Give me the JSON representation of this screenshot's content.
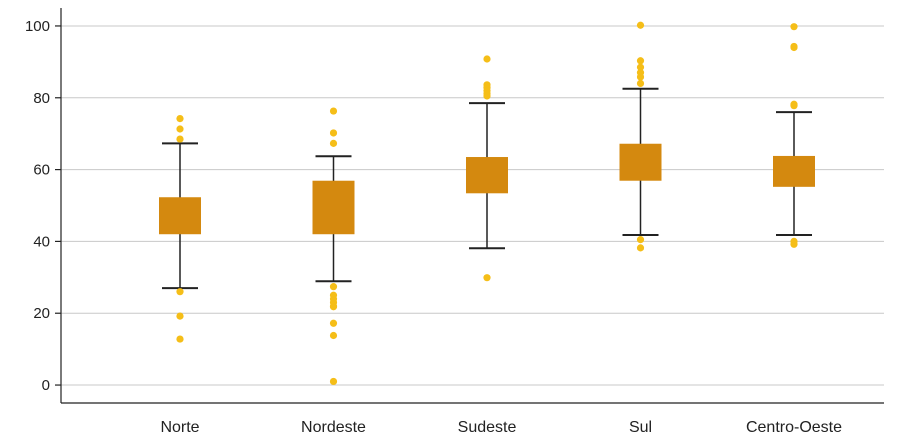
{
  "chart_data": {
    "type": "box",
    "title": "",
    "xlabel": "",
    "ylabel": "",
    "ylim": [
      -5,
      105
    ],
    "yticks": [
      0,
      20,
      40,
      60,
      80,
      100
    ],
    "grid": "horizontal",
    "legend": "none",
    "colors": {
      "box": "#D4890F",
      "outlier": "#F5BE18",
      "whisker": "#222222",
      "grid": "#C8C8C8",
      "axis": "#222222"
    },
    "categories": [
      "Norte",
      "Nordeste",
      "Sudeste",
      "Sul",
      "Centro-Oeste"
    ],
    "series": [
      {
        "category": "Norte",
        "whisker_low": 27,
        "q1": 42,
        "q3": 52.3,
        "whisker_high": 67.3,
        "outliers": [
          74.2,
          71.3,
          68.5,
          26,
          19.2,
          12.8
        ]
      },
      {
        "category": "Nordeste",
        "whisker_low": 28.9,
        "q1": 42,
        "q3": 56.9,
        "whisker_high": 63.7,
        "outliers": [
          76.3,
          70.2,
          67.3,
          27.4,
          25,
          24,
          23,
          22,
          21.8,
          17.2,
          13.8,
          1
        ]
      },
      {
        "category": "Sudeste",
        "whisker_low": 38.1,
        "q1": 53.4,
        "q3": 63.5,
        "whisker_high": 78.5,
        "outliers": [
          90.8,
          83.6,
          82.8,
          82,
          81.2,
          80.5,
          29.9
        ]
      },
      {
        "category": "Sul",
        "whisker_low": 41.8,
        "q1": 56.9,
        "q3": 67.2,
        "whisker_high": 82.5,
        "outliers": [
          100.2,
          90.3,
          88.5,
          87,
          85.8,
          84,
          40.5,
          38.2
        ]
      },
      {
        "category": "Centro-Oeste",
        "whisker_low": 41.8,
        "q1": 55.2,
        "q3": 63.8,
        "whisker_high": 76,
        "outliers": [
          99.8,
          94.3,
          94,
          78.2,
          77.8,
          40,
          39.2
        ]
      }
    ]
  }
}
